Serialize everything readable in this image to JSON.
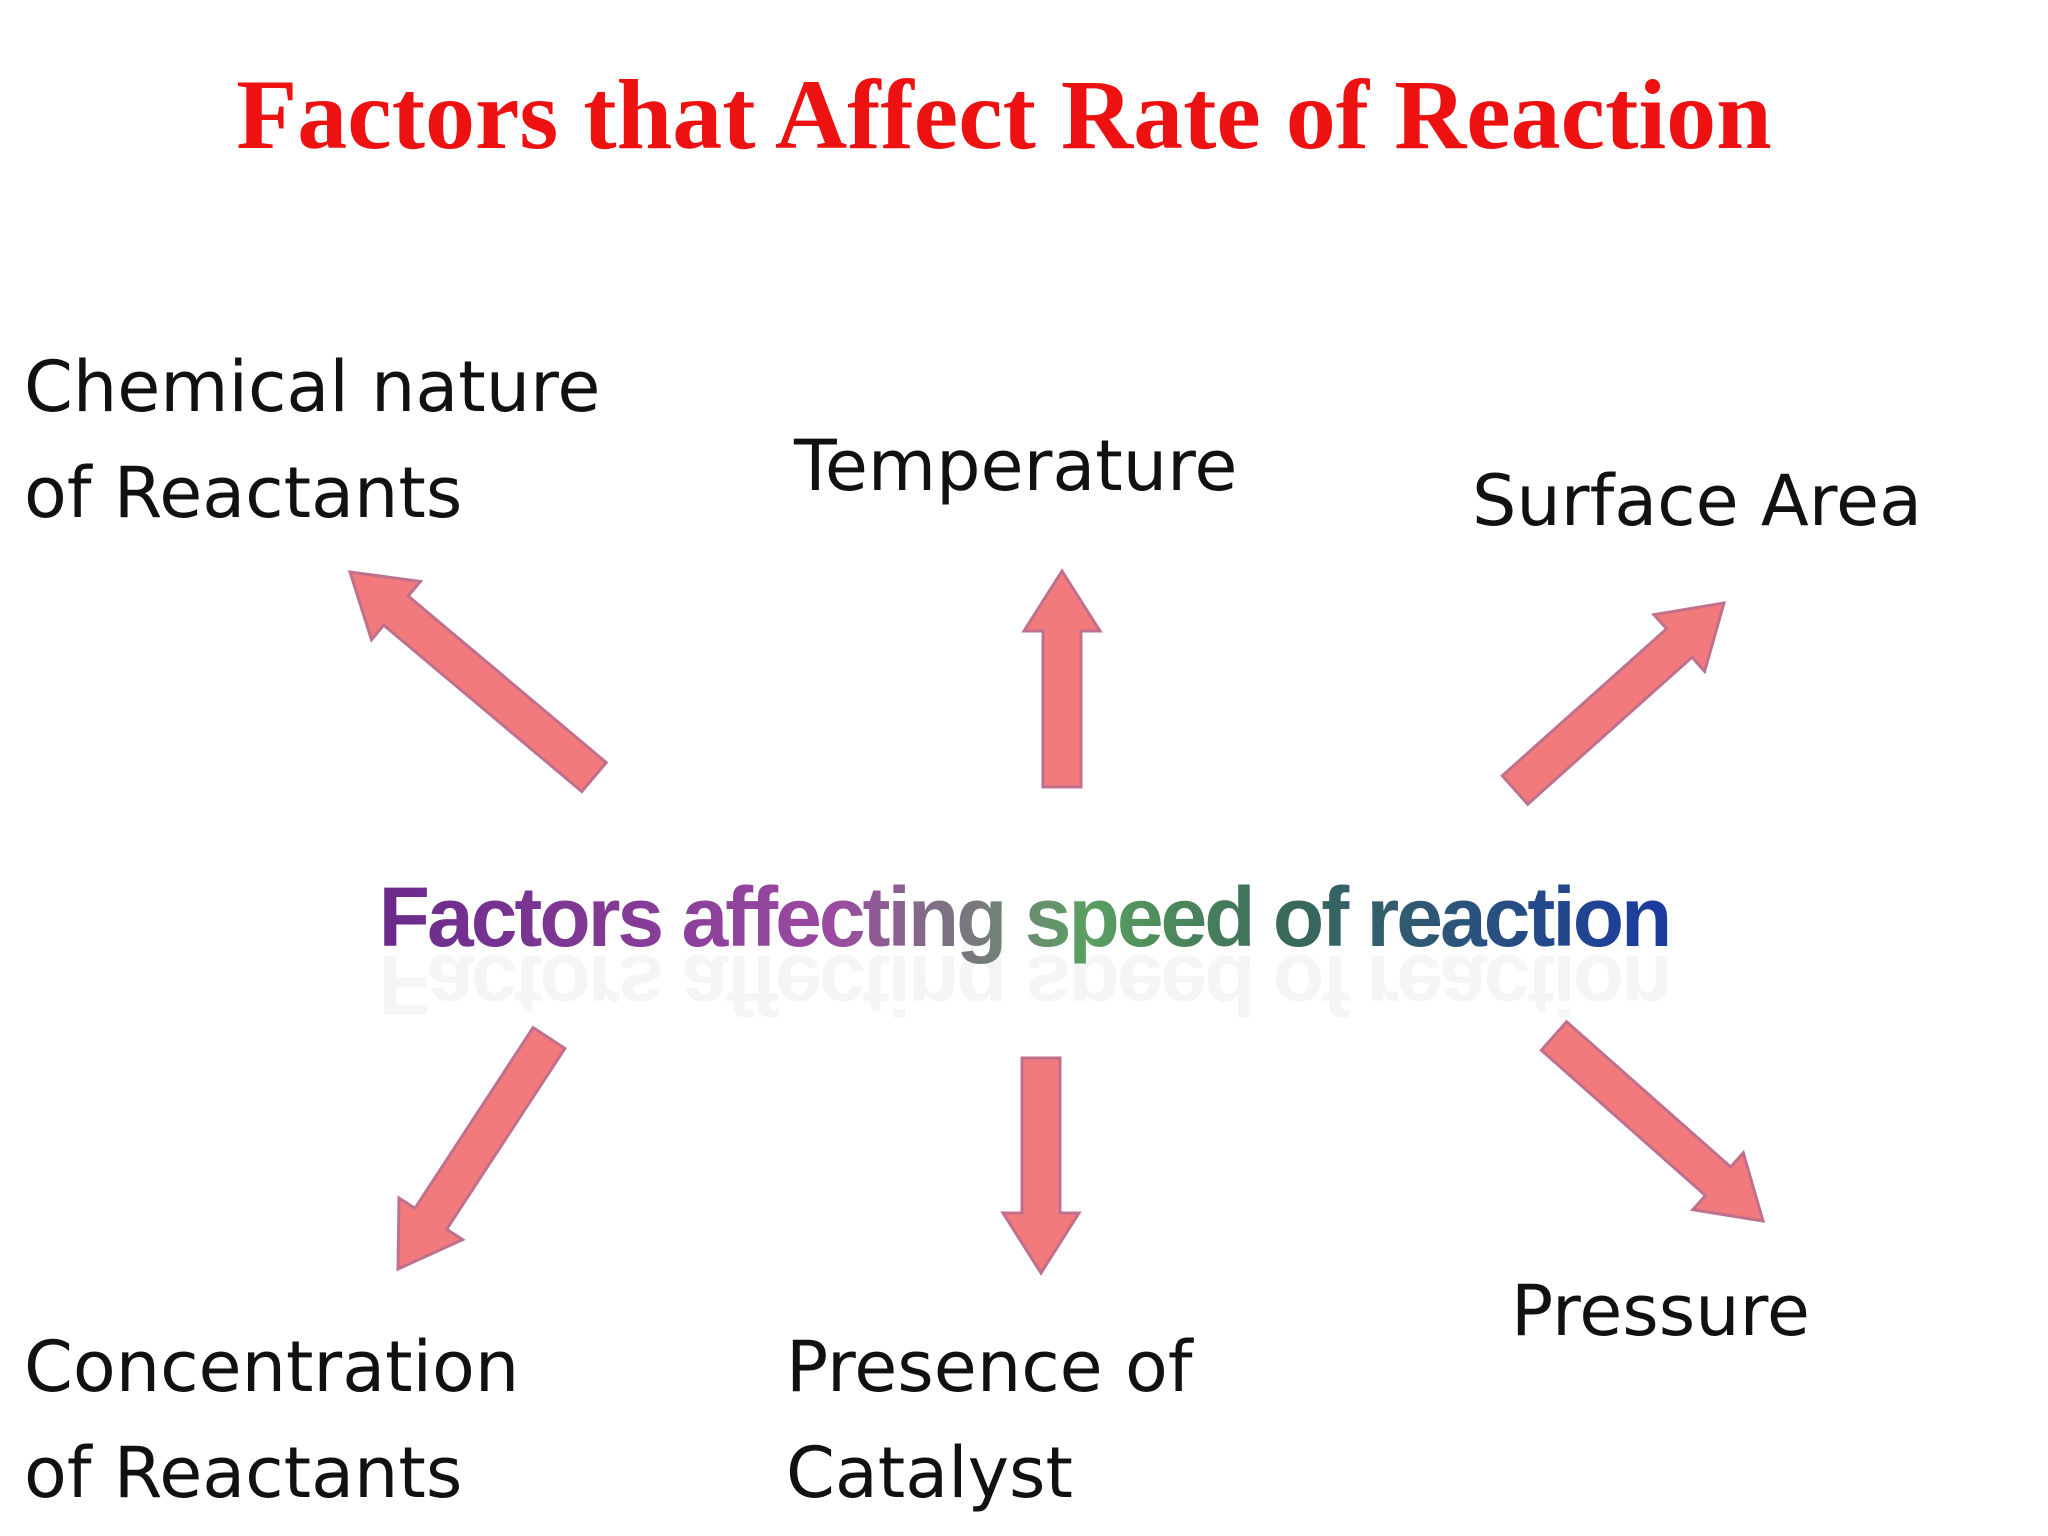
{
  "title": "Factors that Affect Rate of Reaction",
  "center": "Factors affecting speed of reaction",
  "nodes": [
    {
      "lines": [
        "Chemical nature",
        "of Reactants"
      ]
    },
    {
      "lines": [
        "Temperature"
      ]
    },
    {
      "lines": [
        "Surface Area"
      ]
    },
    {
      "lines": [
        "Concentration",
        "of Reactants"
      ]
    },
    {
      "lines": [
        "Presence of",
        "Catalyst"
      ]
    },
    {
      "lines": [
        "Pressure"
      ]
    }
  ]
}
